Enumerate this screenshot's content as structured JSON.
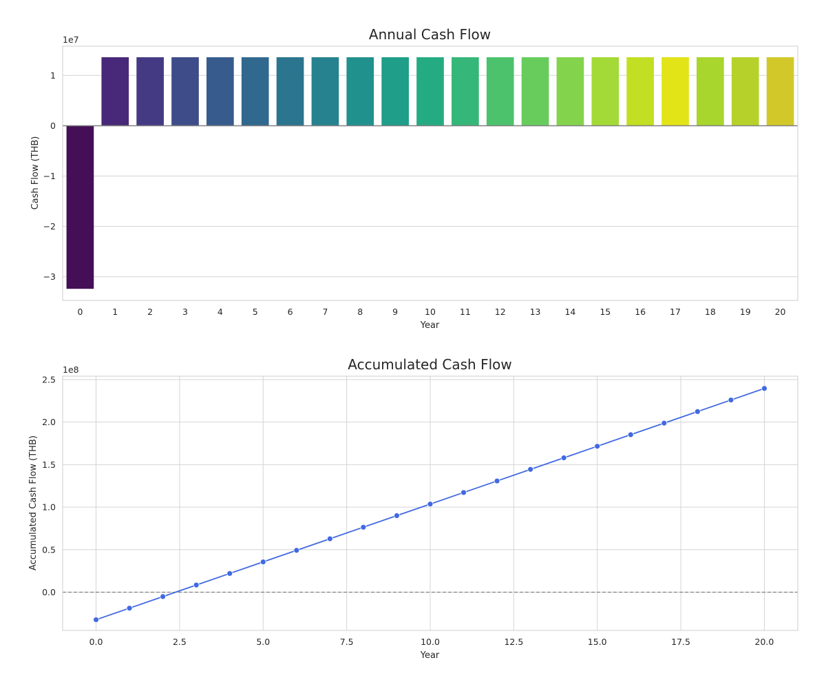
{
  "chart_data": [
    {
      "type": "bar",
      "title": "Annual Cash Flow",
      "xlabel": "Year",
      "ylabel": "Cash Flow (THB)",
      "y_offset_label": "1e7",
      "y_scale": 10000000,
      "categories": [
        "0",
        "1",
        "2",
        "3",
        "4",
        "5",
        "6",
        "7",
        "8",
        "9",
        "10",
        "11",
        "12",
        "13",
        "14",
        "15",
        "16",
        "17",
        "18",
        "19",
        "20"
      ],
      "values": [
        -32400000,
        13600000,
        13600000,
        13600000,
        13600000,
        13600000,
        13600000,
        13600000,
        13600000,
        13600000,
        13600000,
        13600000,
        13600000,
        13600000,
        13600000,
        13600000,
        13600000,
        13600000,
        13600000,
        13600000,
        13600000
      ],
      "ylim": [
        -34700000,
        15800000
      ],
      "yticks": [
        -3,
        -2,
        -1,
        0,
        1
      ],
      "ytick_labels": [
        "−3",
        "−2",
        "−1",
        "0",
        "1"
      ],
      "colors": [
        "#440f57",
        "#482878",
        "#443a83",
        "#3e4c8a",
        "#375b8d",
        "#31688e",
        "#2b758e",
        "#26828e",
        "#21918d",
        "#1f9e89",
        "#25ab82",
        "#35b779",
        "#4cc26c",
        "#67cc5c",
        "#83d44c",
        "#a3da37",
        "#c2df23",
        "#e2e418",
        "#a8d62c",
        "#b6d22a",
        "#d2c82a"
      ],
      "zero_line": true,
      "grid": "y"
    },
    {
      "type": "line",
      "title": "Accumulated Cash Flow",
      "xlabel": "Year",
      "ylabel": "Accumulated Cash Flow (THB)",
      "y_offset_label": "1e8",
      "y_scale": 100000000,
      "x": [
        0,
        1,
        2,
        3,
        4,
        5,
        6,
        7,
        8,
        9,
        10,
        11,
        12,
        13,
        14,
        15,
        16,
        17,
        18,
        19,
        20
      ],
      "y": [
        -32400000,
        -18800000,
        -5200000,
        8400000,
        22000000,
        35600000,
        49200000,
        62800000,
        76400000,
        90000000,
        103600000,
        117200000,
        130800000,
        144400000,
        158000000,
        171600000,
        185200000,
        198800000,
        212400000,
        226000000,
        239600000
      ],
      "xlim": [
        -1,
        21
      ],
      "ylim": [
        -45000000,
        254000000
      ],
      "xticks": [
        0,
        2.5,
        5,
        7.5,
        10,
        12.5,
        15,
        17.5,
        20
      ],
      "xtick_labels": [
        "0.0",
        "2.5",
        "5.0",
        "7.5",
        "10.0",
        "12.5",
        "15.0",
        "17.5",
        "20.0"
      ],
      "yticks": [
        0,
        0.5,
        1.0,
        1.5,
        2.0,
        2.5
      ],
      "ytick_labels": [
        "0.0",
        "0.5",
        "1.0",
        "1.5",
        "2.0",
        "2.5"
      ],
      "line_color": "#4169e1",
      "marker": "circle",
      "zero_line": "dashed",
      "grid": "both"
    }
  ]
}
